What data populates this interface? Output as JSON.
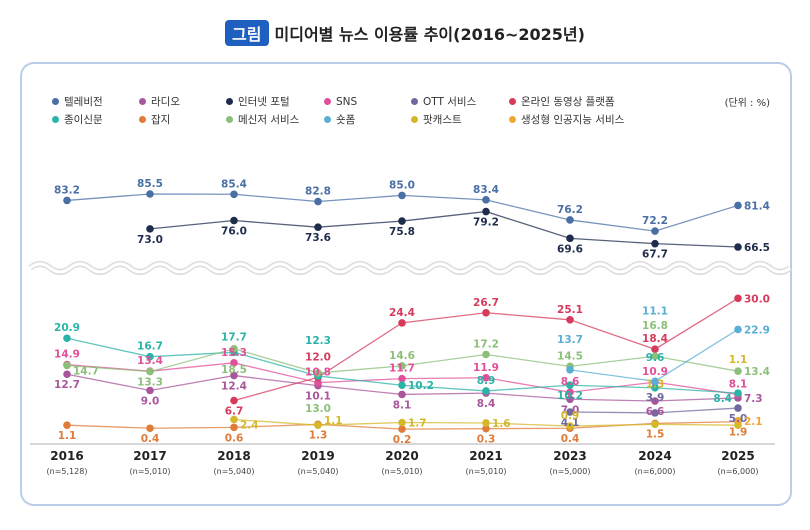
{
  "title": {
    "badge": "그림",
    "text": "미디어별 뉴스 이용률 추이(2016~2025년)"
  },
  "unit": "(단위 : %)",
  "chart_data": {
    "type": "line",
    "categories": [
      "2016",
      "2017",
      "2018",
      "2019",
      "2020",
      "2021",
      "2023",
      "2024",
      "2025"
    ],
    "samples": [
      "(n=5,128)",
      "(n=5,010)",
      "(n=5,040)",
      "(n=5,040)",
      "(n=5,010)",
      "(n=5,010)",
      "(n=5,000)",
      "(n=6,000)",
      "(n=6,000)"
    ],
    "axis_break": true,
    "series": [
      {
        "name": "텔레비전",
        "color": "#4a6fa5",
        "values": [
          83.2,
          85.5,
          85.4,
          82.8,
          85.0,
          83.4,
          76.2,
          72.2,
          81.4
        ]
      },
      {
        "name": "라디오",
        "color": "#a9579b",
        "values": [
          12.7,
          9.0,
          12.4,
          10.1,
          8.1,
          8.4,
          7.0,
          6.6,
          7.3
        ]
      },
      {
        "name": "인터넷 포털",
        "color": "#1f2d4d",
        "values": [
          null,
          73.0,
          76.0,
          73.6,
          75.8,
          79.2,
          69.6,
          67.7,
          66.5
        ]
      },
      {
        "name": "SNS",
        "color": "#e0509a",
        "values": [
          14.9,
          13.4,
          15.3,
          10.8,
          11.7,
          11.9,
          8.6,
          10.9,
          8.1
        ]
      },
      {
        "name": "OTT 서비스",
        "color": "#6e6aa0",
        "values": [
          null,
          null,
          null,
          null,
          null,
          null,
          4.1,
          3.9,
          5.0
        ]
      },
      {
        "name": "온라인 동영상 플랫폼",
        "color": "#d63b5c",
        "values": [
          null,
          null,
          6.7,
          12.0,
          24.4,
          26.7,
          25.1,
          18.4,
          30.0
        ]
      },
      {
        "name": "종이신문",
        "color": "#2bb3a8",
        "values": [
          20.9,
          16.7,
          17.7,
          12.3,
          10.2,
          8.9,
          10.2,
          9.6,
          8.4
        ]
      },
      {
        "name": "잡지",
        "color": "#e07b39",
        "values": [
          1.1,
          0.4,
          0.6,
          1.3,
          0.2,
          0.3,
          0.4,
          1.5,
          1.9
        ]
      },
      {
        "name": "메신저 서비스",
        "color": "#8cc07a",
        "values": [
          14.7,
          13.3,
          18.5,
          13.0,
          14.6,
          17.2,
          14.5,
          16.8,
          13.4
        ]
      },
      {
        "name": "숏폼",
        "color": "#5aaed6",
        "values": [
          null,
          null,
          null,
          null,
          null,
          null,
          13.7,
          11.1,
          22.9
        ]
      },
      {
        "name": "팟캐스트",
        "color": "#d4b82a",
        "values": [
          null,
          null,
          2.4,
          1.1,
          1.7,
          1.6,
          0.9,
          1.3,
          1.1
        ]
      },
      {
        "name": "생성형 인공지능 서비스",
        "color": "#f0a830",
        "values": [
          null,
          null,
          null,
          null,
          null,
          null,
          null,
          null,
          2.1
        ]
      }
    ]
  }
}
